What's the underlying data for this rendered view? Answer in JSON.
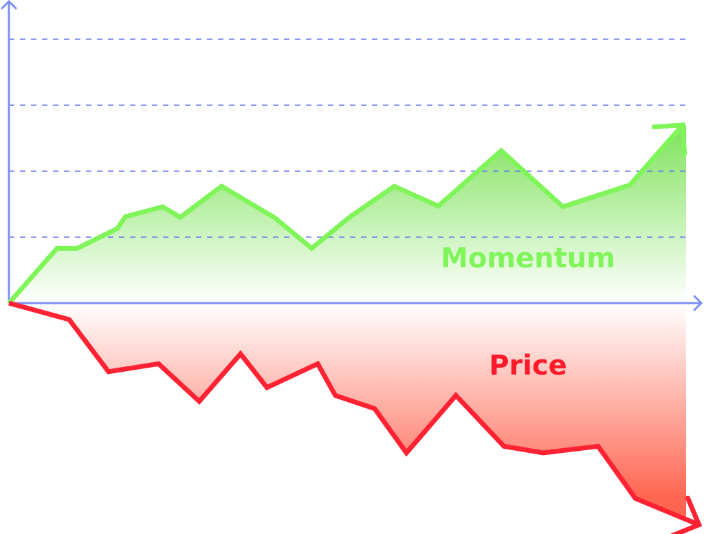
{
  "chart_data": {
    "type": "area",
    "title": "",
    "xlabel": "",
    "ylabel": "",
    "xlim": [
      0,
      100
    ],
    "ylim": [
      -3.4,
      4.5
    ],
    "grid": {
      "horizontal": true,
      "style": "dashed",
      "values": [
        1,
        2,
        3,
        4
      ]
    },
    "colors": {
      "axis": "#7b8ff5",
      "grid": "#6677ee"
    },
    "series": [
      {
        "name": "Momentum",
        "color": "#80f55a",
        "fill_top": "#7ee25a",
        "x": [
          0,
          7.1,
          10.1,
          16.0,
          17.2,
          22.7,
          25.3,
          31.4,
          39.3,
          44.7,
          50.4,
          56.9,
          63.4,
          72.7,
          81.8,
          91.7,
          99.5
        ],
        "y": [
          0,
          0.83,
          0.83,
          1.13,
          1.31,
          1.46,
          1.3,
          1.77,
          1.29,
          0.83,
          1.31,
          1.77,
          1.47,
          2.31,
          1.46,
          1.79,
          2.7
        ]
      },
      {
        "name": "Price",
        "color": "#ff2233",
        "fill_bottom": "#ff6652",
        "x": [
          0,
          8.9,
          14.7,
          22.1,
          28.1,
          34.2,
          38.1,
          45.6,
          48.2,
          54.0,
          58.7,
          66.0,
          73.1,
          78.9,
          87.0,
          92.5,
          101.9
        ],
        "y": [
          0,
          -0.25,
          -1.04,
          -0.92,
          -1.49,
          -0.77,
          -1.28,
          -0.92,
          -1.4,
          -1.6,
          -2.27,
          -1.4,
          -2.17,
          -2.27,
          -2.17,
          -2.96,
          -3.36
        ]
      }
    ]
  }
}
